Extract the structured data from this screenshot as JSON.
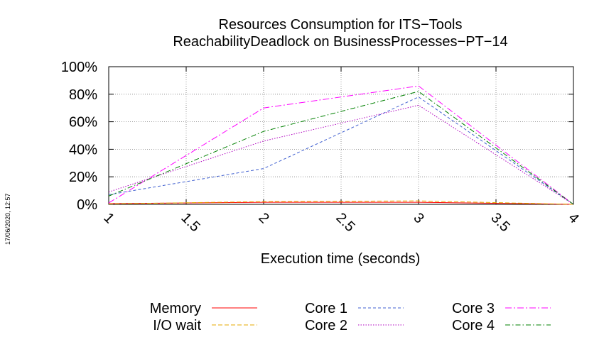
{
  "stamp": "17/06/2020, 12:57",
  "chart_data": {
    "type": "line",
    "title": "Resources Consumption for ITS−Tools",
    "subtitle": "ReachabilityDeadlock on BusinessProcesses−PT−14",
    "xlabel": "Execution time (seconds)",
    "ylabel": "",
    "xlim": [
      1,
      4
    ],
    "ylim": [
      0,
      100
    ],
    "x_ticks": [
      "1",
      "1.5",
      "2",
      "2.5",
      "3",
      "3.5",
      "4"
    ],
    "y_ticks": [
      "0%",
      "20%",
      "40%",
      "60%",
      "80%",
      "100%"
    ],
    "grid": true,
    "legend_position": "bottom",
    "x": [
      1,
      2,
      3,
      4
    ],
    "series": [
      {
        "name": "Memory",
        "color": "#ff0000",
        "dash": "",
        "values": [
          0.5,
          1.5,
          1.5,
          0
        ]
      },
      {
        "name": "I/O wait",
        "color": "#e6a800",
        "dash": "6,3",
        "values": [
          0.3,
          2,
          2.5,
          0
        ]
      },
      {
        "name": "Core 1",
        "color": "#4060d0",
        "dash": "4,3",
        "values": [
          7,
          26,
          78,
          0
        ]
      },
      {
        "name": "Core 2",
        "color": "#b000c0",
        "dash": "1.5,2",
        "values": [
          9,
          46,
          72,
          0
        ]
      },
      {
        "name": "Core 3",
        "color": "#ff00ff",
        "dash": "9,3,2,3",
        "values": [
          1,
          70,
          86,
          0
        ]
      },
      {
        "name": "Core 4",
        "color": "#008000",
        "dash": "7,3,1.5,3",
        "values": [
          6,
          53,
          82,
          0
        ]
      }
    ]
  }
}
